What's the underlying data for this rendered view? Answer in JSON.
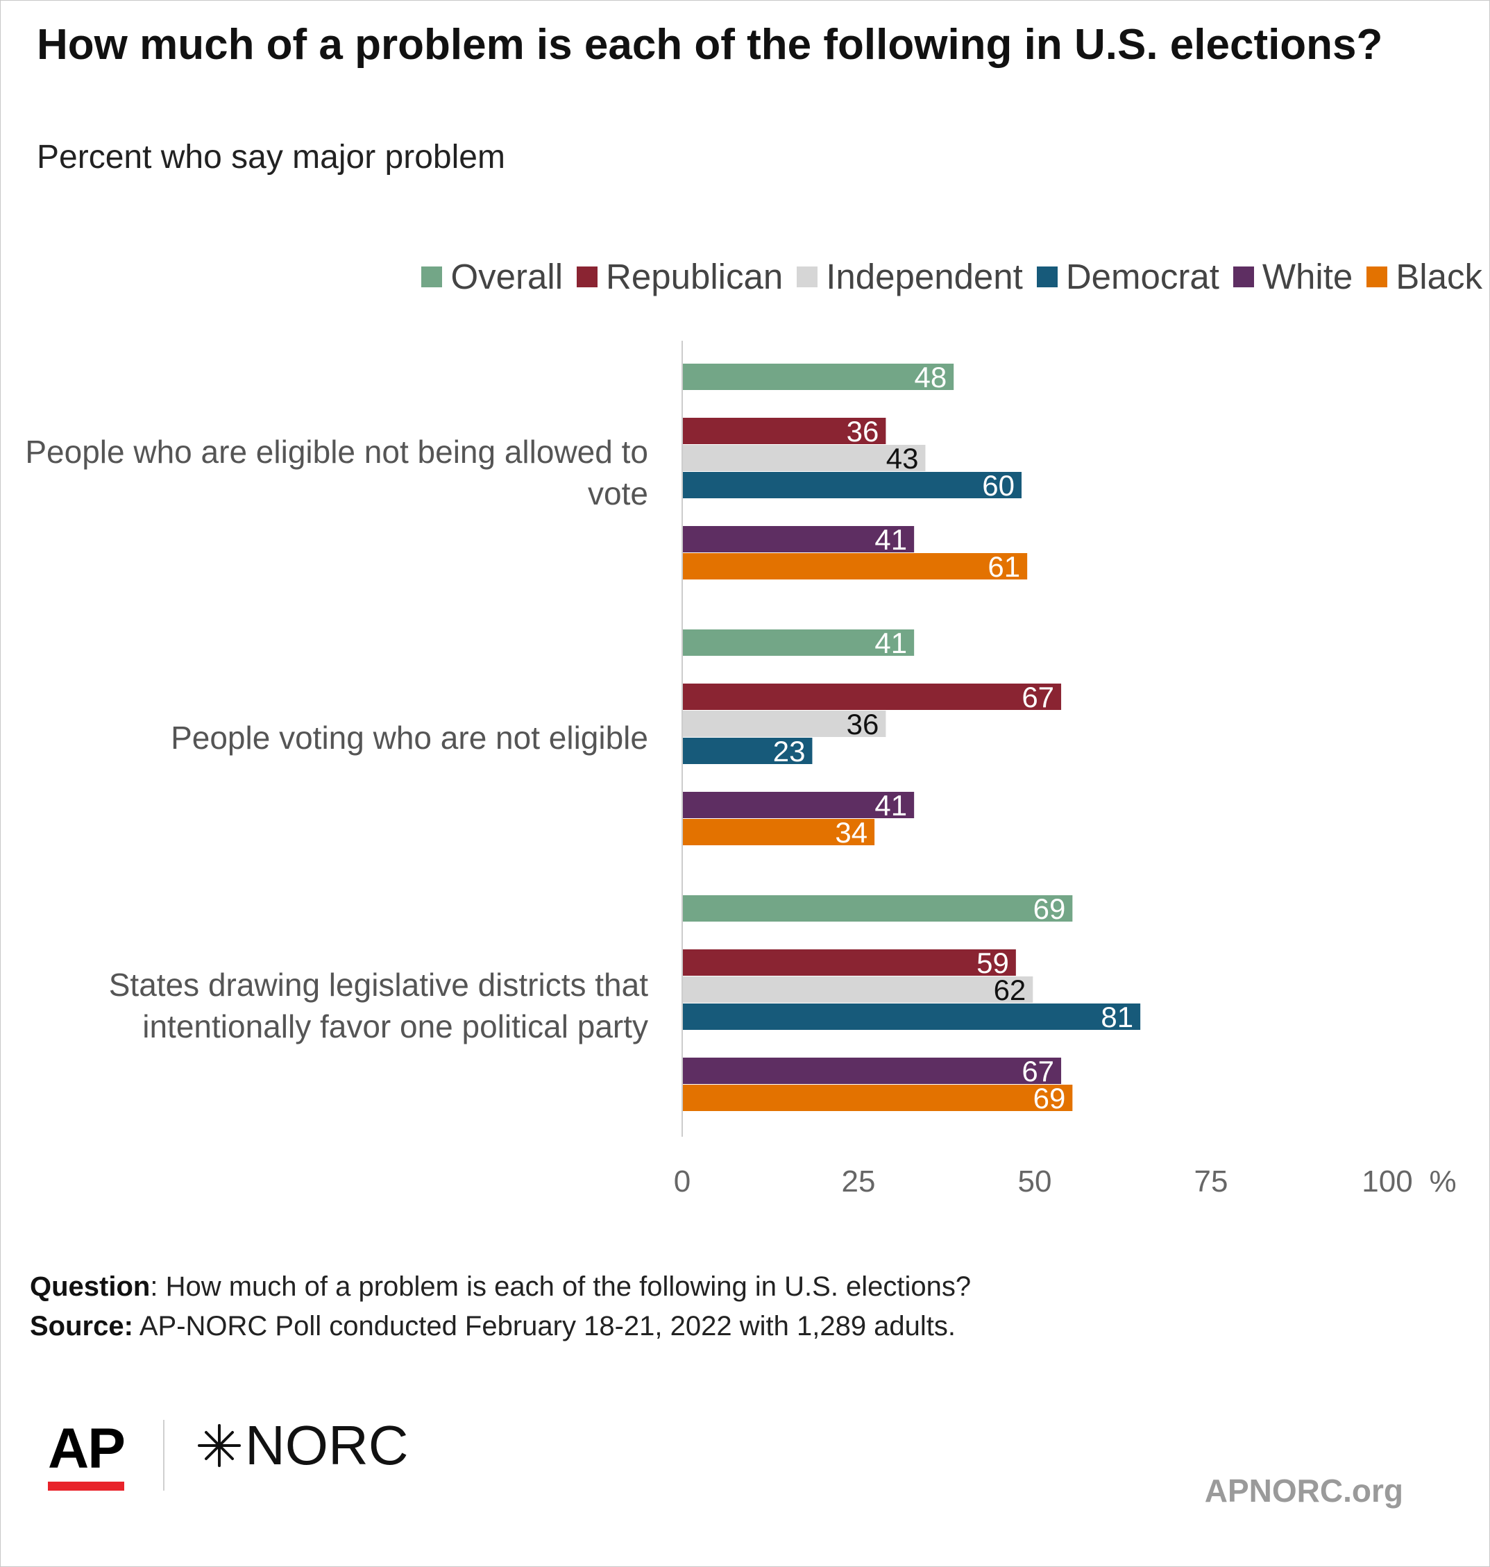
{
  "title": "How much of a problem is each of the following in U.S. elections?",
  "subtitle": "Percent who say major problem",
  "chart_data": {
    "type": "bar",
    "orientation": "horizontal",
    "categories": [
      "People who are eligible not being allowed to vote",
      "People voting who are not eligible",
      "States drawing legislative districts that intentionally favor one political party"
    ],
    "series": [
      {
        "name": "Overall",
        "color": "#73a687",
        "values": [
          48,
          41,
          69
        ]
      },
      {
        "name": "Republican",
        "color": "#8a2432",
        "values": [
          36,
          67,
          59
        ]
      },
      {
        "name": "Independent",
        "color": "#d6d6d6",
        "values": [
          43,
          36,
          62
        ]
      },
      {
        "name": "Democrat",
        "color": "#175a7a",
        "values": [
          60,
          23,
          81
        ]
      },
      {
        "name": "White",
        "color": "#5e2e62",
        "values": [
          41,
          41,
          67
        ]
      },
      {
        "name": "Black",
        "color": "#e37200",
        "values": [
          61,
          34,
          69
        ]
      }
    ],
    "x_ticks": [
      "0",
      "25",
      "50",
      "75",
      "100"
    ],
    "x_unit": "%",
    "xlim": [
      0,
      100
    ],
    "legend_position": "top-right",
    "grid": false
  },
  "notes": {
    "question_label": "Question",
    "question_text": ": How much of a problem is each of the following in U.S. elections?",
    "source_label": "Source:",
    "source_text": " AP-NORC Poll conducted February 18-21, 2022 with 1,289 adults."
  },
  "branding": {
    "ap_logo": "AP",
    "norc_logo": "NORC",
    "site": "APNORC.org",
    "ap_red": "#e8232a"
  }
}
